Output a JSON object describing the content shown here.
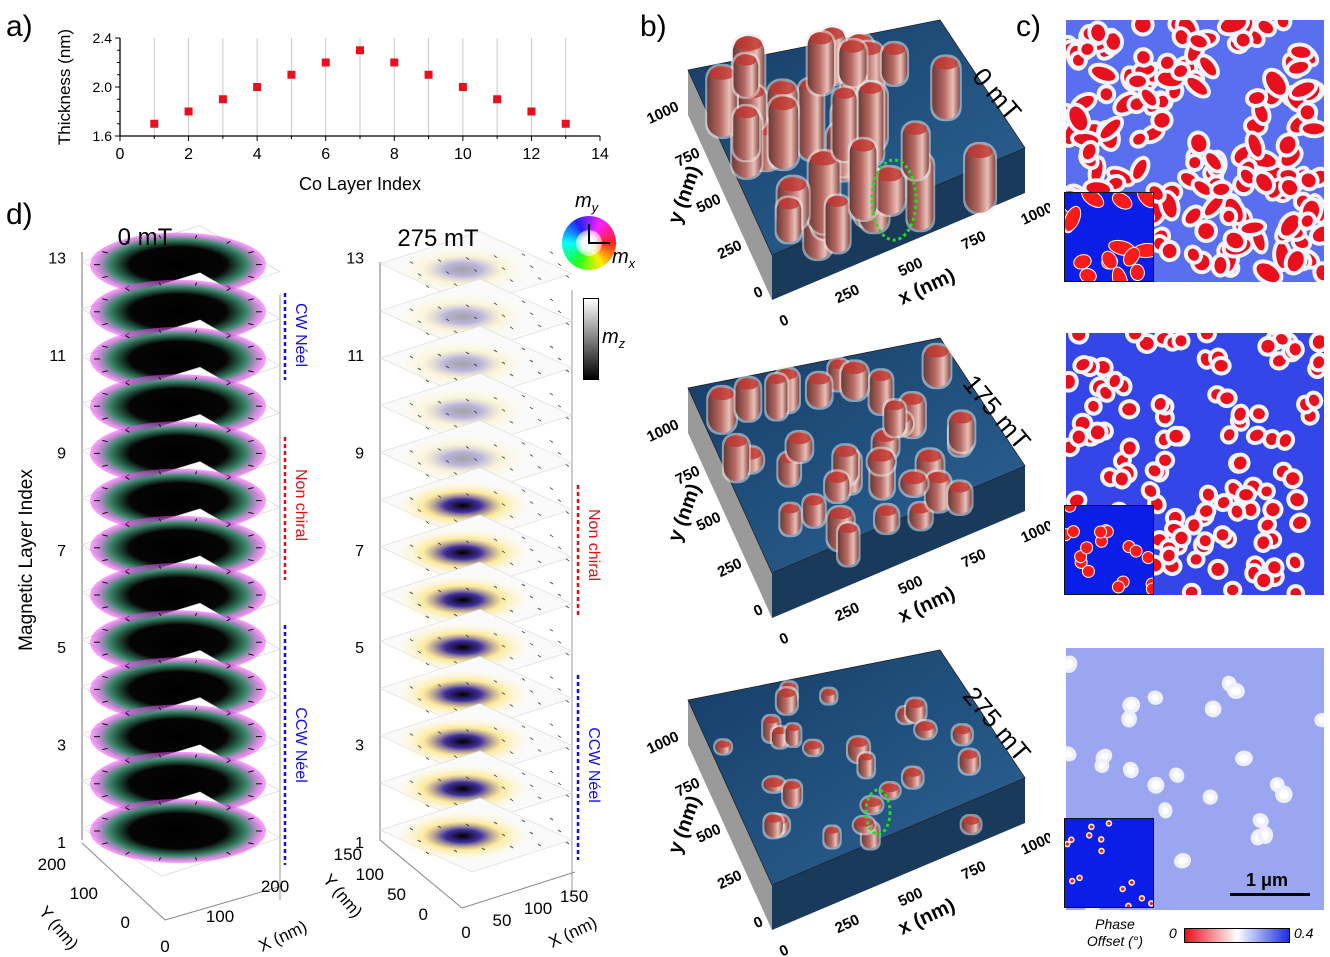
{
  "labels": {
    "a": "a)",
    "b": "b)",
    "c": "c)",
    "d": "d)"
  },
  "chart_data": {
    "type": "scatter",
    "xlabel": "Co Layer Index",
    "ylabel": "Thickness (nm)",
    "xlim": [
      0,
      14
    ],
    "ylim": [
      1.6,
      2.4
    ],
    "xticks": [
      "0",
      "2",
      "4",
      "6",
      "8",
      "10",
      "12",
      "14"
    ],
    "yticks": [
      "1.6",
      "2.0",
      "2.4"
    ],
    "grid": "vertical",
    "x": [
      1,
      2,
      3,
      4,
      5,
      6,
      7,
      8,
      9,
      10,
      11,
      12,
      13
    ],
    "y": [
      1.7,
      1.8,
      1.9,
      2.0,
      2.1,
      2.2,
      2.3,
      2.2,
      2.1,
      2.0,
      1.9,
      1.8,
      1.7
    ],
    "marker_color": "#e8101c"
  },
  "panel_b": {
    "fields": [
      "0 mT",
      "175 mT",
      "275 mT"
    ],
    "y_axis": "y (nm)",
    "x_axis": "x (nm)",
    "y_ticks": [
      "0",
      "250",
      "500",
      "750",
      "1000"
    ],
    "x_ticks": [
      "0",
      "250",
      "500",
      "750",
      "1000"
    ],
    "surface_color": "#1f4e7e",
    "domain_color": "#b86a64",
    "highlight_color": "#22dd22"
  },
  "panel_c": {
    "scalebar": "1 μm",
    "colorbar_title_line1": "Phase",
    "colorbar_title_line2": "Offset (°)",
    "colorbar_min": "0",
    "colorbar_max": "0.4",
    "colors": {
      "low": "#e8101c",
      "mid": "#ffffff",
      "high": "#1a2ee0"
    }
  },
  "panel_d": {
    "left_title": "0 mT",
    "right_title": "275 mT",
    "ylabel": "Magnetic Layer Index",
    "layer_ticks": [
      "1",
      "3",
      "5",
      "7",
      "9",
      "11",
      "13"
    ],
    "left_Y_label": "Y (nm)",
    "left_X_label": "X (nm)",
    "left_Y_ticks": [
      "0",
      "100",
      "200"
    ],
    "left_X_ticks": [
      "0",
      "100",
      "200"
    ],
    "right_Y_label": "Y (nm)",
    "right_X_label": "X (nm)",
    "right_Y_ticks": [
      "0",
      "50",
      "100",
      "150"
    ],
    "right_X_ticks": [
      "0",
      "50",
      "100",
      "150"
    ],
    "cw_label": "CW Néel",
    "nonchiral_label": "Non chiral",
    "ccw_label": "CCW Néel",
    "mz_label": "m",
    "mz_sub": "z",
    "my_label": "m",
    "my_sub": "y",
    "mx_label": "m",
    "mx_sub": "x",
    "cw_color": "#1010e0",
    "nonchiral_color": "#e01010"
  }
}
